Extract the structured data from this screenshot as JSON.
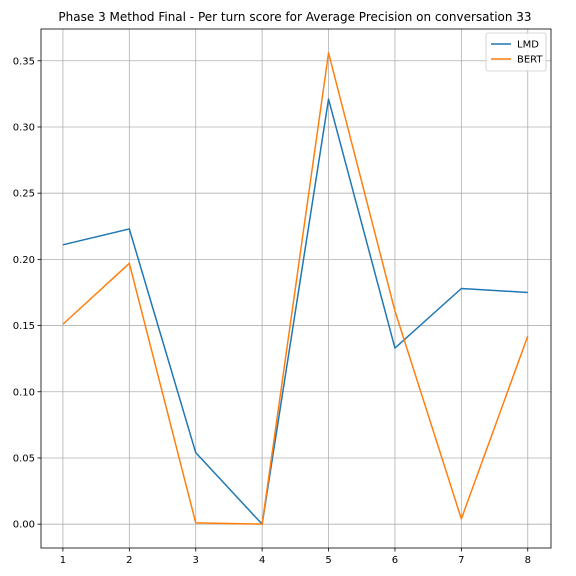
{
  "chart_data": {
    "type": "line",
    "title": "Phase 3 Method Final - Per turn score for Average Precision on conversation 33",
    "xlabel": "",
    "ylabel": "",
    "x": [
      1,
      2,
      3,
      4,
      5,
      6,
      7,
      8
    ],
    "xticks": [
      "1",
      "2",
      "3",
      "4",
      "5",
      "6",
      "7",
      "8"
    ],
    "yticks": [
      "0.00",
      "0.05",
      "0.10",
      "0.15",
      "0.20",
      "0.25",
      "0.30",
      "0.35"
    ],
    "xlim": [
      0.67,
      8.35
    ],
    "ylim": [
      -0.018,
      0.374
    ],
    "grid": true,
    "legend_position": "top-right",
    "series": [
      {
        "name": "LMD",
        "color": "#1f77b4",
        "values": [
          0.211,
          0.223,
          0.054,
          0.0,
          0.321,
          0.133,
          0.178,
          0.175
        ]
      },
      {
        "name": "BERT",
        "color": "#ff7f0e",
        "values": [
          0.151,
          0.197,
          0.001,
          0.0,
          0.356,
          0.161,
          0.004,
          0.142
        ]
      }
    ]
  }
}
